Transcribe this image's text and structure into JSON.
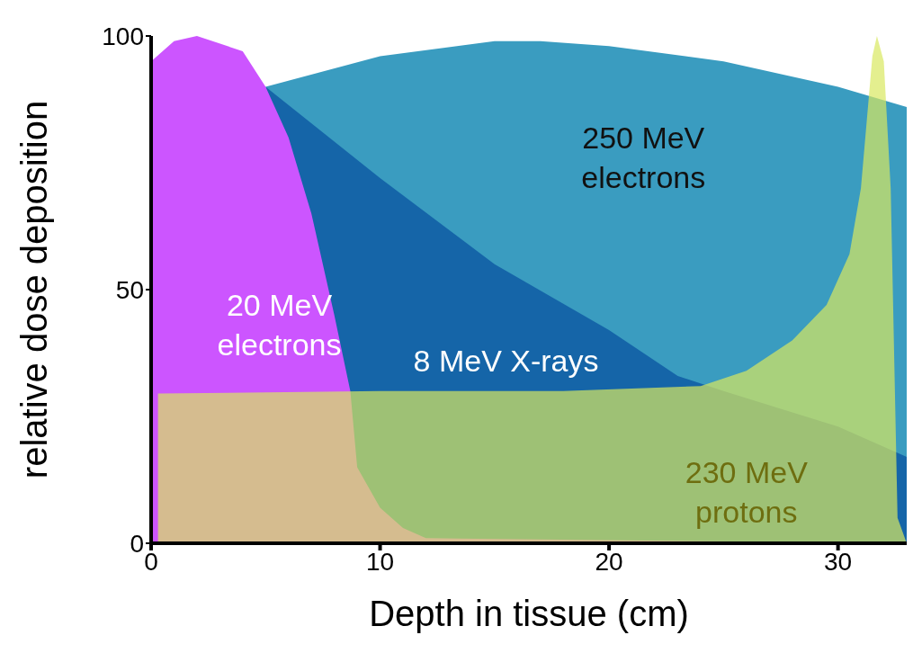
{
  "chart_data": {
    "type": "area",
    "xlabel": "Depth in tissue (cm)",
    "ylabel": "relative dose deposition",
    "xlim": [
      0,
      33
    ],
    "ylim": [
      0,
      100
    ],
    "xticks": [
      0,
      10,
      20,
      30
    ],
    "yticks": [
      0,
      50,
      100
    ],
    "legend": false,
    "series": [
      {
        "name": "250 MeV electrons",
        "color": "#3a9cc0",
        "x": [
          5,
          10,
          15,
          17,
          20,
          25,
          30,
          33
        ],
        "values": [
          90,
          96,
          99,
          99,
          98,
          95,
          90,
          86
        ]
      },
      {
        "name": "8 MeV X-rays",
        "color": "#1565a8",
        "x": [
          5,
          10,
          15,
          20,
          23,
          25,
          30,
          33
        ],
        "values": [
          90,
          72,
          55,
          42,
          33,
          30,
          23,
          17
        ]
      },
      {
        "name": "20 MeV electrons",
        "color": "#cc55ff",
        "x": [
          0,
          1,
          2,
          4,
          5,
          6,
          7,
          8,
          8.7,
          9,
          10,
          11,
          12,
          33
        ],
        "values": [
          95,
          99,
          100,
          97,
          90,
          80,
          65,
          45,
          30,
          15,
          7,
          3,
          1,
          0
        ]
      },
      {
        "name": "230 MeV protons",
        "color": "#d8e860",
        "x": [
          0.3,
          10,
          18,
          24,
          26,
          28,
          29.5,
          30.5,
          31,
          31.5,
          31.7,
          32,
          32.3,
          32.6,
          33
        ],
        "values": [
          29.5,
          30,
          30,
          31,
          34,
          40,
          47,
          57,
          70,
          96,
          100,
          95,
          70,
          5,
          0
        ]
      }
    ]
  }
}
